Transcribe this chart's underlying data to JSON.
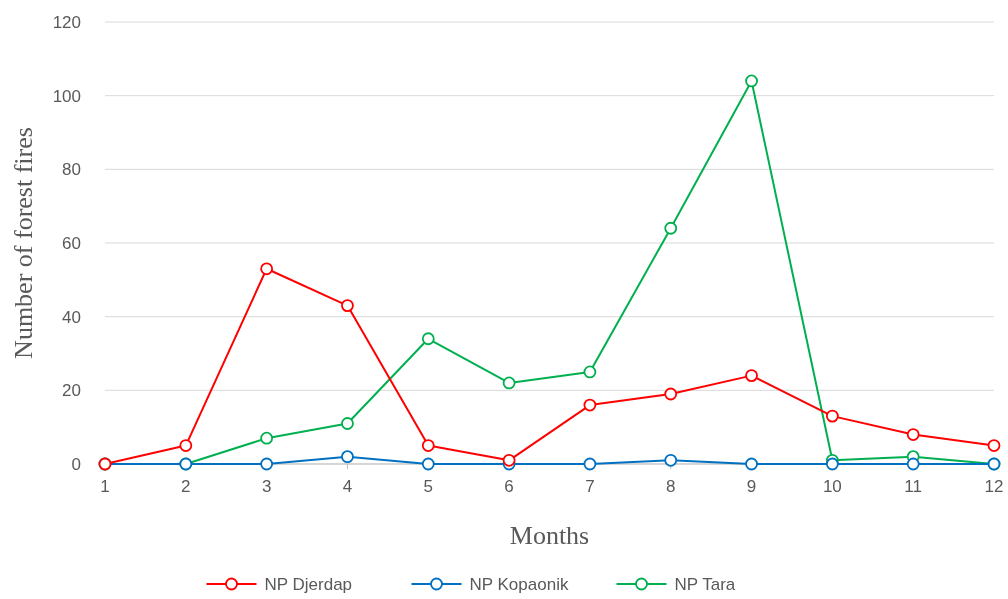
{
  "chart_data": {
    "type": "line",
    "xlabel": "Months",
    "ylabel": "Number of forest fires",
    "x": [
      1,
      2,
      3,
      4,
      5,
      6,
      7,
      8,
      9,
      10,
      11,
      12
    ],
    "xlim": [
      1,
      12
    ],
    "xticks": [
      1,
      2,
      3,
      4,
      5,
      6,
      7,
      8,
      9,
      10,
      11,
      12
    ],
    "ylim": [
      0,
      120
    ],
    "yticks": [
      0,
      20,
      40,
      60,
      80,
      100,
      120
    ],
    "grid": "y",
    "legend": "bottom",
    "marker": "circle",
    "line_style": "solid",
    "series": [
      {
        "name": "NP Djerdap",
        "color": "#ff0000",
        "values": [
          0,
          5,
          53,
          43,
          5,
          1,
          16,
          19,
          24,
          13,
          8,
          5
        ]
      },
      {
        "name": "NP Kopaonik",
        "color": "#0070c0",
        "values": [
          0,
          0,
          0,
          2,
          0,
          0,
          0,
          1,
          0,
          0,
          0,
          0
        ]
      },
      {
        "name": "NP Tara",
        "color": "#00b050",
        "values": [
          0,
          0,
          7,
          11,
          34,
          22,
          25,
          64,
          104,
          1,
          2,
          0
        ]
      }
    ]
  }
}
